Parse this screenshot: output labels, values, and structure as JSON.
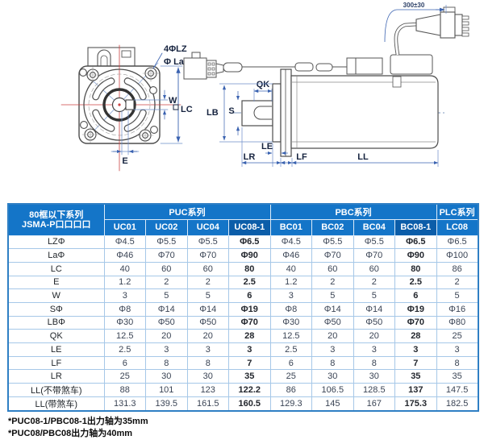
{
  "diagram": {
    "front_view": {
      "labels": {
        "lz": "4ΦLZ",
        "la": "Φ La",
        "w": "W",
        "lc": "LC",
        "e": "E"
      }
    },
    "side_view": {
      "labels": {
        "qk": "QK",
        "lb": "LB",
        "s": "S",
        "le": "LE",
        "lr": "LR",
        "lf": "LF",
        "ll": "LL",
        "cable_length": "300±30"
      }
    }
  },
  "table": {
    "corner": {
      "line1": "80框以下系列",
      "line2": "JSMA-P口口口口"
    },
    "groups": [
      {
        "label": "PUC系列",
        "span": 4
      },
      {
        "label": "PBC系列",
        "span": 4
      },
      {
        "label": "PLC系列",
        "span": 1
      }
    ],
    "columns": [
      "UC01",
      "UC02",
      "UC04",
      "UC08-1",
      "BC01",
      "BC02",
      "BC04",
      "BC08-1",
      "LC08"
    ],
    "highlight_column_indexes": [
      3,
      7
    ],
    "rows": [
      {
        "label": "LZΦ",
        "values": [
          "Φ4.5",
          "Φ5.5",
          "Φ5.5",
          "Φ6.5",
          "Φ4.5",
          "Φ5.5",
          "Φ5.5",
          "Φ6.5",
          "Φ6.5"
        ]
      },
      {
        "label": "LaΦ",
        "values": [
          "Φ46",
          "Φ70",
          "Φ70",
          "Φ90",
          "Φ46",
          "Φ70",
          "Φ70",
          "Φ90",
          "Φ100"
        ]
      },
      {
        "label": "LC",
        "values": [
          "40",
          "60",
          "60",
          "80",
          "40",
          "60",
          "60",
          "80",
          "86"
        ]
      },
      {
        "label": "E",
        "values": [
          "1.2",
          "2",
          "2",
          "2.5",
          "1.2",
          "2",
          "2",
          "2.5",
          "2"
        ]
      },
      {
        "label": "W",
        "values": [
          "3",
          "5",
          "5",
          "6",
          "3",
          "5",
          "5",
          "6",
          "5"
        ]
      },
      {
        "label": "SΦ",
        "values": [
          "Φ8",
          "Φ14",
          "Φ14",
          "Φ19",
          "Φ8",
          "Φ14",
          "Φ14",
          "Φ19",
          "Φ16"
        ]
      },
      {
        "label": "LBΦ",
        "values": [
          "Φ30",
          "Φ50",
          "Φ50",
          "Φ70",
          "Φ30",
          "Φ50",
          "Φ50",
          "Φ70",
          "Φ80"
        ]
      },
      {
        "label": "QK",
        "values": [
          "12.5",
          "20",
          "20",
          "28",
          "12.5",
          "20",
          "20",
          "28",
          "25"
        ]
      },
      {
        "label": "LE",
        "values": [
          "2.5",
          "3",
          "3",
          "3",
          "2.5",
          "3",
          "3",
          "3",
          "3"
        ]
      },
      {
        "label": "LF",
        "values": [
          "6",
          "8",
          "8",
          "7",
          "6",
          "8",
          "8",
          "7",
          "8"
        ]
      },
      {
        "label": "LR",
        "values": [
          "25",
          "30",
          "30",
          "35",
          "25",
          "30",
          "30",
          "35",
          "35"
        ]
      },
      {
        "label": "LL(不带煞车)",
        "values": [
          "88",
          "101",
          "123",
          "122.2",
          "86",
          "106.5",
          "128.5",
          "137",
          "147.5"
        ]
      },
      {
        "label": "LL(带煞车)",
        "values": [
          "131.3",
          "139.5",
          "161.5",
          "160.5",
          "129.3",
          "145",
          "167",
          "175.3",
          "182.5"
        ]
      }
    ]
  },
  "footnotes": [
    "*PUC08-1/PBC08-1出力轴为35mm",
    "*PUC08/PBC08出力轴为40mm"
  ],
  "colors": {
    "header_blue": "#1475c8",
    "header_blue_dark": "#0b5da9",
    "grid_line": "#a6c8e8",
    "outer_border": "#2f7fc4",
    "dimension_blue": "#3a62b0",
    "centerline_red": "#cc4343"
  }
}
